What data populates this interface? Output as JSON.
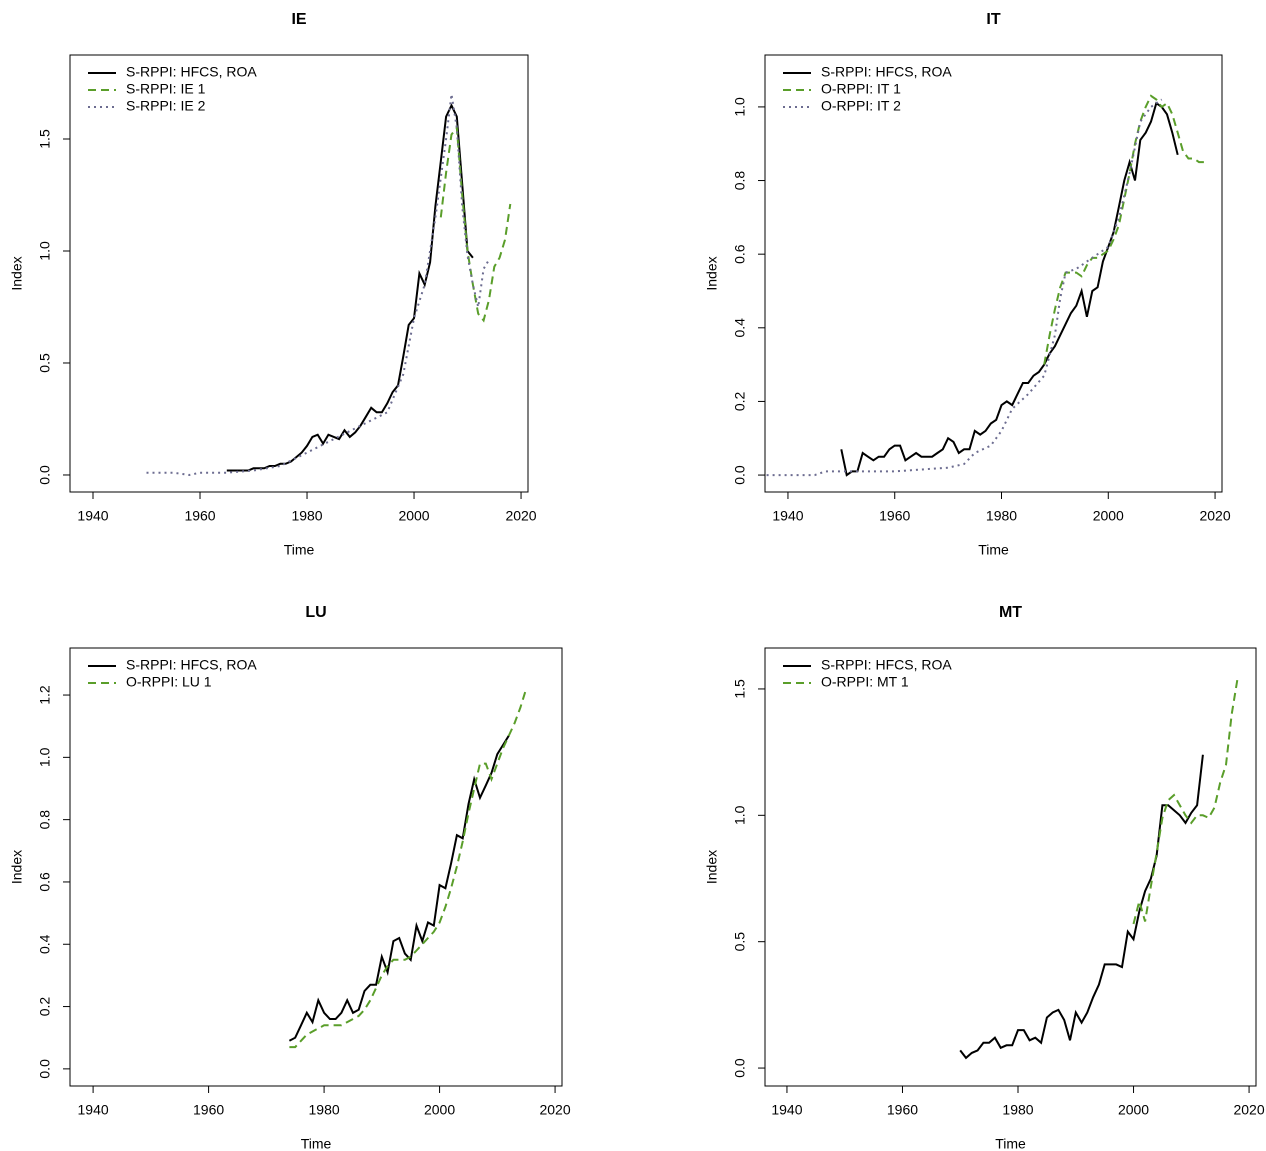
{
  "chart_data": [
    {
      "type": "line",
      "title": "IE",
      "xlabel": "Time",
      "ylabel": "Index",
      "xlim": [
        1935.7,
        2021.3
      ],
      "ylim": [
        -0.076,
        1.875
      ],
      "xticks": [
        1940,
        1960,
        1980,
        2000,
        2020
      ],
      "yticks": [
        {
          "value": 0,
          "label": "0.0"
        },
        {
          "value": 0.5,
          "label": "0.5"
        },
        {
          "value": 1,
          "label": "1.0"
        },
        {
          "value": 1.5,
          "label": "1.5"
        }
      ],
      "legend": "top-left",
      "series": [
        {
          "name": "S-RPPI: HFCS, ROA",
          "color": "#000000",
          "linestyle": "solid",
          "x": [
            1965,
            1966,
            1967,
            1968,
            1969,
            1970,
            1971,
            1972,
            1973,
            1974,
            1975,
            1976,
            1977,
            1978,
            1979,
            1980,
            1981,
            1982,
            1983,
            1984,
            1985,
            1986,
            1987,
            1988,
            1989,
            1990,
            1991,
            1992,
            1993,
            1994,
            1995,
            1996,
            1997,
            1998,
            1999,
            2000,
            2001,
            2002,
            2003,
            2004,
            2005,
            2006,
            2007,
            2008,
            2009,
            2010,
            2011
          ],
          "values": [
            0.02,
            0.02,
            0.02,
            0.02,
            0.02,
            0.03,
            0.03,
            0.03,
            0.04,
            0.04,
            0.05,
            0.05,
            0.06,
            0.08,
            0.1,
            0.13,
            0.17,
            0.18,
            0.14,
            0.18,
            0.17,
            0.16,
            0.2,
            0.17,
            0.19,
            0.22,
            0.26,
            0.3,
            0.28,
            0.28,
            0.32,
            0.37,
            0.4,
            0.53,
            0.67,
            0.7,
            0.9,
            0.85,
            0.95,
            1.2,
            1.4,
            1.6,
            1.65,
            1.6,
            1.3,
            1.0,
            0.97
          ]
        },
        {
          "name": "S-RPPI: IE 1",
          "color": "#5a9e2a",
          "linestyle": "dashed",
          "x": [
            2005,
            2006,
            2007,
            2008,
            2009,
            2010,
            2011,
            2012,
            2013,
            2014,
            2015,
            2016,
            2017,
            2018
          ],
          "values": [
            1.15,
            1.35,
            1.52,
            1.55,
            1.25,
            1.0,
            0.85,
            0.72,
            0.69,
            0.78,
            0.93,
            0.97,
            1.05,
            1.21
          ]
        },
        {
          "name": "S-RPPI: IE 2",
          "color": "#6c6c90",
          "linestyle": "dotted",
          "x": [
            1950,
            1955,
            1958,
            1960,
            1965,
            1970,
            1975,
            1980,
            1985,
            1990,
            1995,
            1998,
            2000,
            2002,
            2004,
            2006,
            2007,
            2008,
            2009,
            2010,
            2011,
            2012,
            2013,
            2014
          ],
          "values": [
            0.01,
            0.01,
            0.0,
            0.01,
            0.01,
            0.02,
            0.04,
            0.1,
            0.16,
            0.22,
            0.28,
            0.45,
            0.7,
            0.85,
            1.15,
            1.5,
            1.7,
            1.55,
            1.2,
            0.98,
            0.85,
            0.75,
            0.92,
            0.96
          ]
        }
      ]
    },
    {
      "type": "line",
      "title": "IT",
      "xlabel": "Time",
      "ylabel": "Index",
      "xlim": [
        1935.7,
        2021.3
      ],
      "ylim": [
        -0.046,
        1.141
      ],
      "xticks": [
        1940,
        1960,
        1980,
        2000,
        2020
      ],
      "yticks": [
        {
          "value": 0,
          "label": "0.0"
        },
        {
          "value": 0.2,
          "label": "0.2"
        },
        {
          "value": 0.4,
          "label": "0.4"
        },
        {
          "value": 0.6,
          "label": "0.6"
        },
        {
          "value": 0.8,
          "label": "0.8"
        },
        {
          "value": 1,
          "label": "1.0"
        }
      ],
      "legend": "top-left",
      "series": [
        {
          "name": "S-RPPI: HFCS, ROA",
          "color": "#000000",
          "linestyle": "solid",
          "x": [
            1950,
            1951,
            1952,
            1953,
            1954,
            1955,
            1956,
            1957,
            1958,
            1959,
            1960,
            1961,
            1962,
            1963,
            1964,
            1965,
            1966,
            1967,
            1968,
            1969,
            1970,
            1971,
            1972,
            1973,
            1974,
            1975,
            1976,
            1977,
            1978,
            1979,
            1980,
            1981,
            1982,
            1983,
            1984,
            1985,
            1986,
            1987,
            1988,
            1989,
            1990,
            1991,
            1992,
            1993,
            1994,
            1995,
            1996,
            1997,
            1998,
            1999,
            2000,
            2001,
            2002,
            2003,
            2004,
            2005,
            2006,
            2007,
            2008,
            2009,
            2010,
            2011,
            2012,
            2013
          ],
          "values": [
            0.07,
            0.0,
            0.01,
            0.01,
            0.06,
            0.05,
            0.04,
            0.05,
            0.05,
            0.07,
            0.08,
            0.08,
            0.04,
            0.05,
            0.06,
            0.05,
            0.05,
            0.05,
            0.06,
            0.07,
            0.1,
            0.09,
            0.06,
            0.07,
            0.07,
            0.12,
            0.11,
            0.12,
            0.14,
            0.15,
            0.19,
            0.2,
            0.19,
            0.22,
            0.25,
            0.25,
            0.27,
            0.28,
            0.3,
            0.33,
            0.35,
            0.38,
            0.41,
            0.44,
            0.46,
            0.5,
            0.43,
            0.5,
            0.51,
            0.58,
            0.62,
            0.66,
            0.73,
            0.8,
            0.85,
            0.8,
            0.91,
            0.93,
            0.96,
            1.01,
            1.0,
            0.98,
            0.93,
            0.87
          ]
        },
        {
          "name": "O-RPPI: IT 1",
          "color": "#5a9e2a",
          "linestyle": "dashed",
          "x": [
            1988,
            1989,
            1990,
            1991,
            1992,
            1993,
            1994,
            1995,
            1996,
            1997,
            1998,
            1999,
            2000,
            2001,
            2002,
            2003,
            2004,
            2005,
            2006,
            2007,
            2008,
            2009,
            2010,
            2011,
            2012,
            2013,
            2014,
            2015,
            2016,
            2017,
            2018
          ],
          "values": [
            0.3,
            0.38,
            0.45,
            0.51,
            0.55,
            0.55,
            0.55,
            0.54,
            0.57,
            0.59,
            0.59,
            0.6,
            0.61,
            0.64,
            0.68,
            0.75,
            0.82,
            0.9,
            0.96,
            1.0,
            1.03,
            1.02,
            1.0,
            1.01,
            0.98,
            0.93,
            0.88,
            0.86,
            0.86,
            0.85,
            0.85
          ]
        },
        {
          "name": "O-RPPI: IT 2",
          "color": "#6c6c90",
          "linestyle": "dotted",
          "x": [
            1936,
            1945,
            1947,
            1950,
            1960,
            1965,
            1970,
            1973,
            1975,
            1978,
            1980,
            1982,
            1985,
            1988,
            1990,
            1991,
            1992,
            1994,
            1996,
            1998,
            2000,
            2002,
            2004,
            2006,
            2008,
            2010
          ],
          "values": [
            0.0,
            0.0,
            0.01,
            0.01,
            0.01,
            0.015,
            0.02,
            0.03,
            0.06,
            0.08,
            0.12,
            0.18,
            0.22,
            0.27,
            0.38,
            0.48,
            0.55,
            0.56,
            0.58,
            0.6,
            0.62,
            0.7,
            0.82,
            0.96,
            1.0,
            1.02
          ]
        }
      ]
    },
    {
      "type": "line",
      "title": "LU",
      "xlabel": "Time",
      "ylabel": "Index",
      "xlim": [
        1936.0,
        2021.2
      ],
      "ylim": [
        -0.055,
        1.351
      ],
      "xticks": [
        1940,
        1960,
        1980,
        2000,
        2020
      ],
      "yticks": [
        {
          "value": 0,
          "label": "0.0"
        },
        {
          "value": 0.2,
          "label": "0.2"
        },
        {
          "value": 0.4,
          "label": "0.4"
        },
        {
          "value": 0.6,
          "label": "0.6"
        },
        {
          "value": 0.8,
          "label": "0.8"
        },
        {
          "value": 1,
          "label": "1.0"
        },
        {
          "value": 1.2,
          "label": "1.2"
        }
      ],
      "legend": "top-left",
      "series": [
        {
          "name": "S-RPPI: HFCS, ROA",
          "color": "#000000",
          "linestyle": "solid",
          "x": [
            1974,
            1975,
            1976,
            1977,
            1978,
            1979,
            1980,
            1981,
            1982,
            1983,
            1984,
            1985,
            1986,
            1987,
            1988,
            1989,
            1990,
            1991,
            1992,
            1993,
            1994,
            1995,
            1996,
            1997,
            1998,
            1999,
            2000,
            2001,
            2002,
            2003,
            2004,
            2005,
            2006,
            2007,
            2008,
            2009,
            2010,
            2011,
            2012
          ],
          "values": [
            0.09,
            0.1,
            0.14,
            0.18,
            0.15,
            0.22,
            0.18,
            0.16,
            0.16,
            0.18,
            0.22,
            0.18,
            0.19,
            0.25,
            0.27,
            0.27,
            0.36,
            0.31,
            0.41,
            0.42,
            0.37,
            0.35,
            0.46,
            0.41,
            0.47,
            0.46,
            0.59,
            0.58,
            0.66,
            0.75,
            0.74,
            0.85,
            0.93,
            0.87,
            0.91,
            0.95,
            1.01,
            1.04,
            1.07
          ]
        },
        {
          "name": "O-RPPI: LU 1",
          "color": "#5a9e2a",
          "linestyle": "dashed",
          "x": [
            1974,
            1975,
            1976,
            1977,
            1978,
            1979,
            1980,
            1981,
            1982,
            1983,
            1984,
            1985,
            1986,
            1987,
            1988,
            1989,
            1990,
            1991,
            1992,
            1993,
            1994,
            1995,
            1996,
            1997,
            1998,
            1999,
            2000,
            2001,
            2002,
            2003,
            2004,
            2005,
            2006,
            2007,
            2008,
            2009,
            2010,
            2011,
            2012,
            2013,
            2014,
            2015
          ],
          "values": [
            0.07,
            0.07,
            0.09,
            0.11,
            0.12,
            0.13,
            0.14,
            0.14,
            0.14,
            0.14,
            0.15,
            0.16,
            0.17,
            0.19,
            0.22,
            0.26,
            0.3,
            0.33,
            0.35,
            0.35,
            0.35,
            0.36,
            0.38,
            0.4,
            0.42,
            0.44,
            0.47,
            0.52,
            0.58,
            0.65,
            0.73,
            0.82,
            0.9,
            0.98,
            0.98,
            0.93,
            0.98,
            1.03,
            1.07,
            1.11,
            1.16,
            1.22
          ]
        }
      ]
    },
    {
      "type": "line",
      "title": "MT",
      "xlabel": "Time",
      "ylabel": "Index",
      "xlim": [
        1936.2,
        2021.2
      ],
      "ylim": [
        -0.071,
        1.662
      ],
      "xticks": [
        1940,
        1960,
        1980,
        2000,
        2020
      ],
      "yticks": [
        {
          "value": 0,
          "label": "0.0"
        },
        {
          "value": 0.5,
          "label": "0.5"
        },
        {
          "value": 1,
          "label": "1.0"
        },
        {
          "value": 1.5,
          "label": "1.5"
        }
      ],
      "legend": "top-left",
      "series": [
        {
          "name": "S-RPPI: HFCS, ROA",
          "color": "#000000",
          "linestyle": "solid",
          "x": [
            1970,
            1971,
            1972,
            1973,
            1974,
            1975,
            1976,
            1977,
            1978,
            1979,
            1980,
            1981,
            1982,
            1983,
            1984,
            1985,
            1986,
            1987,
            1988,
            1989,
            1990,
            1991,
            1992,
            1993,
            1994,
            1995,
            1996,
            1997,
            1998,
            1999,
            2000,
            2001,
            2002,
            2003,
            2004,
            2005,
            2006,
            2007,
            2008,
            2009,
            2010,
            2011,
            2012
          ],
          "values": [
            0.07,
            0.04,
            0.06,
            0.07,
            0.1,
            0.1,
            0.12,
            0.08,
            0.09,
            0.09,
            0.15,
            0.15,
            0.11,
            0.12,
            0.1,
            0.2,
            0.22,
            0.23,
            0.19,
            0.11,
            0.22,
            0.18,
            0.22,
            0.28,
            0.33,
            0.41,
            0.41,
            0.41,
            0.4,
            0.54,
            0.51,
            0.62,
            0.7,
            0.75,
            0.84,
            1.04,
            1.04,
            1.02,
            1.0,
            0.97,
            1.01,
            1.04,
            1.24
          ]
        },
        {
          "name": "O-RPPI: MT 1",
          "color": "#5a9e2a",
          "linestyle": "dashed",
          "x": [
            2000,
            2001,
            2002,
            2003,
            2004,
            2005,
            2006,
            2007,
            2008,
            2009,
            2010,
            2011,
            2012,
            2013,
            2014,
            2015,
            2016,
            2017,
            2018
          ],
          "values": [
            0.57,
            0.66,
            0.58,
            0.72,
            0.85,
            0.99,
            1.06,
            1.08,
            1.04,
            1.0,
            0.97,
            1.0,
            1.0,
            0.99,
            1.03,
            1.13,
            1.2,
            1.4,
            1.54
          ]
        }
      ]
    }
  ]
}
